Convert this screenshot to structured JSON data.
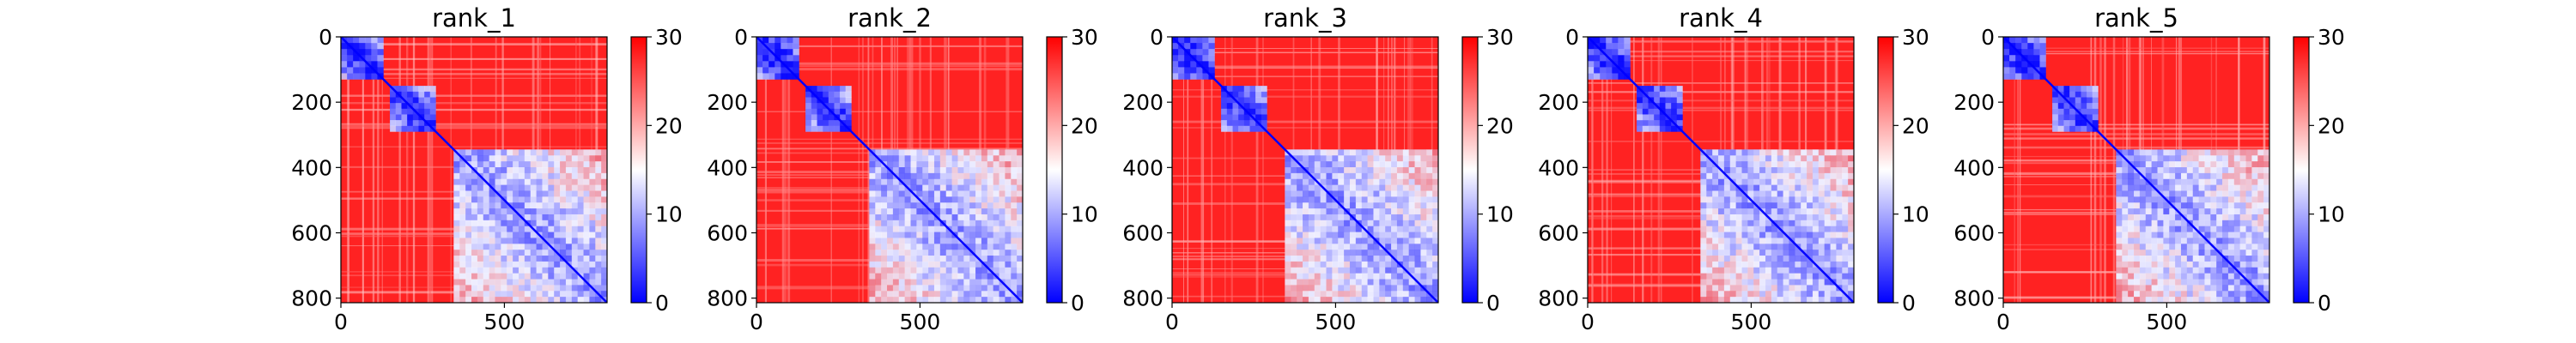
{
  "chart_data": [
    {
      "type": "heatmap",
      "title": "rank_1",
      "xlabel": "",
      "ylabel": "",
      "xlim": [
        0,
        814
      ],
      "ylim": [
        814,
        0
      ],
      "x_ticks": [
        "0",
        "500"
      ],
      "y_ticks": [
        "0",
        "200",
        "400",
        "600",
        "800"
      ],
      "x_tick_values": [
        0,
        500
      ],
      "y_tick_values": [
        0,
        200,
        400,
        600,
        800
      ],
      "colorbar": {
        "range": [
          0,
          30
        ],
        "ticks": [
          "0",
          "10",
          "20",
          "30"
        ],
        "tick_values": [
          0,
          10,
          20,
          30
        ],
        "colormap": "bwr"
      },
      "grid": false,
      "low_value_blocks": [
        {
          "from": 0,
          "to": 130,
          "mean": 3
        },
        {
          "from": 150,
          "to": 290,
          "mean": 4
        },
        {
          "from": 345,
          "to": 814,
          "mean": 11
        }
      ],
      "background_mean": 28
    },
    {
      "type": "heatmap",
      "title": "rank_2",
      "xlabel": "",
      "ylabel": "",
      "xlim": [
        0,
        814
      ],
      "ylim": [
        814,
        0
      ],
      "x_ticks": [
        "0",
        "500"
      ],
      "y_ticks": [
        "0",
        "200",
        "400",
        "600",
        "800"
      ],
      "x_tick_values": [
        0,
        500
      ],
      "y_tick_values": [
        0,
        200,
        400,
        600,
        800
      ],
      "colorbar": {
        "range": [
          0,
          30
        ],
        "ticks": [
          "0",
          "10",
          "20",
          "30"
        ],
        "tick_values": [
          0,
          10,
          20,
          30
        ],
        "colormap": "bwr"
      },
      "grid": false,
      "low_value_blocks": [
        {
          "from": 0,
          "to": 130,
          "mean": 3
        },
        {
          "from": 150,
          "to": 290,
          "mean": 4
        },
        {
          "from": 345,
          "to": 814,
          "mean": 11
        }
      ],
      "background_mean": 28
    },
    {
      "type": "heatmap",
      "title": "rank_3",
      "xlabel": "",
      "ylabel": "",
      "xlim": [
        0,
        814
      ],
      "ylim": [
        814,
        0
      ],
      "x_ticks": [
        "0",
        "500"
      ],
      "y_ticks": [
        "0",
        "200",
        "400",
        "600",
        "800"
      ],
      "x_tick_values": [
        0,
        500
      ],
      "y_tick_values": [
        0,
        200,
        400,
        600,
        800
      ],
      "colorbar": {
        "range": [
          0,
          30
        ],
        "ticks": [
          "0",
          "10",
          "20",
          "30"
        ],
        "tick_values": [
          0,
          10,
          20,
          30
        ],
        "colormap": "bwr"
      },
      "grid": false,
      "low_value_blocks": [
        {
          "from": 0,
          "to": 130,
          "mean": 3
        },
        {
          "from": 150,
          "to": 290,
          "mean": 4
        },
        {
          "from": 345,
          "to": 814,
          "mean": 11
        }
      ],
      "background_mean": 28
    },
    {
      "type": "heatmap",
      "title": "rank_4",
      "xlabel": "",
      "ylabel": "",
      "xlim": [
        0,
        814
      ],
      "ylim": [
        814,
        0
      ],
      "x_ticks": [
        "0",
        "500"
      ],
      "y_ticks": [
        "0",
        "200",
        "400",
        "600",
        "800"
      ],
      "x_tick_values": [
        0,
        500
      ],
      "y_tick_values": [
        0,
        200,
        400,
        600,
        800
      ],
      "colorbar": {
        "range": [
          0,
          30
        ],
        "ticks": [
          "0",
          "10",
          "20",
          "30"
        ],
        "tick_values": [
          0,
          10,
          20,
          30
        ],
        "colormap": "bwr"
      },
      "grid": false,
      "low_value_blocks": [
        {
          "from": 0,
          "to": 130,
          "mean": 3
        },
        {
          "from": 150,
          "to": 290,
          "mean": 4
        },
        {
          "from": 345,
          "to": 814,
          "mean": 11
        }
      ],
      "background_mean": 28
    },
    {
      "type": "heatmap",
      "title": "rank_5",
      "xlabel": "",
      "ylabel": "",
      "xlim": [
        0,
        814
      ],
      "ylim": [
        814,
        0
      ],
      "x_ticks": [
        "0",
        "500"
      ],
      "y_ticks": [
        "0",
        "200",
        "400",
        "600",
        "800"
      ],
      "x_tick_values": [
        0,
        500
      ],
      "y_tick_values": [
        0,
        200,
        400,
        600,
        800
      ],
      "colorbar": {
        "range": [
          0,
          30
        ],
        "ticks": [
          "0",
          "10",
          "20",
          "30"
        ],
        "tick_values": [
          0,
          10,
          20,
          30
        ],
        "colormap": "bwr"
      },
      "grid": false,
      "low_value_blocks": [
        {
          "from": 0,
          "to": 130,
          "mean": 3
        },
        {
          "from": 150,
          "to": 290,
          "mean": 4
        },
        {
          "from": 345,
          "to": 814,
          "mean": 11
        }
      ],
      "background_mean": 28
    }
  ],
  "colors": {
    "low": "#0000ff",
    "mid": "#ffffff",
    "high": "#ff0000",
    "axis": "#000000"
  }
}
